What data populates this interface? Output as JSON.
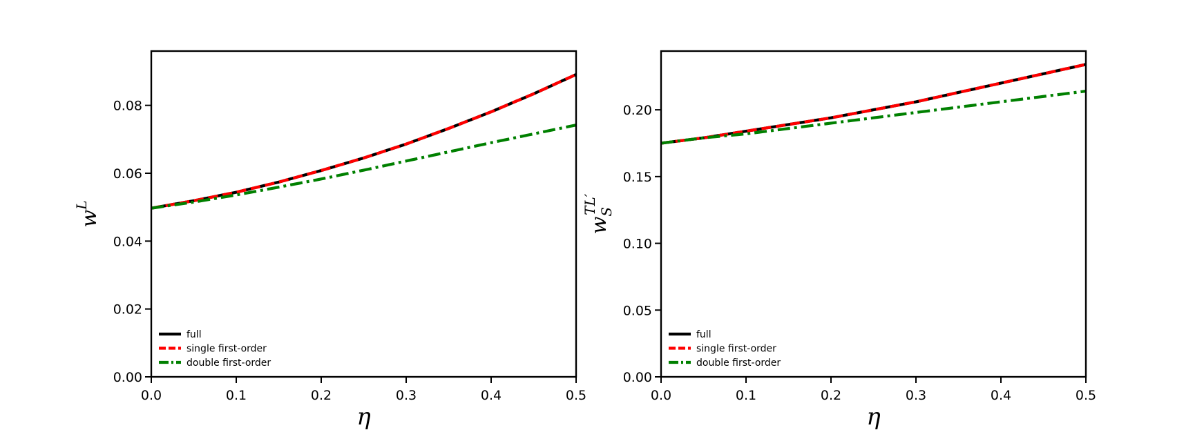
{
  "chart_data": [
    {
      "type": "line",
      "title": "",
      "xlabel": "η",
      "ylabel_base": "w",
      "ylabel_sup": "L",
      "ylabel_sub": "",
      "xlim": [
        0.0,
        0.5
      ],
      "ylim": [
        0.0,
        0.096
      ],
      "xticks": [
        "0.0",
        "0.1",
        "0.2",
        "0.3",
        "0.4",
        "0.5"
      ],
      "yticks": [
        "0.00",
        "0.02",
        "0.04",
        "0.06",
        "0.08"
      ],
      "grid": false,
      "legend_position": "lower-left",
      "x": [
        0.0,
        0.05,
        0.1,
        0.15,
        0.2,
        0.25,
        0.3,
        0.35,
        0.4,
        0.45,
        0.5
      ],
      "series": [
        {
          "name": "full",
          "color": "#000000",
          "style": "solid",
          "values": [
            0.0497,
            0.0519,
            0.0544,
            0.0574,
            0.0608,
            0.0645,
            0.0686,
            0.0732,
            0.0781,
            0.0834,
            0.0891
          ]
        },
        {
          "name": "single first-order",
          "color": "#ff0000",
          "style": "dashed",
          "values": [
            0.0497,
            0.0519,
            0.0544,
            0.0574,
            0.0608,
            0.0645,
            0.0686,
            0.0732,
            0.0781,
            0.0834,
            0.0891
          ]
        },
        {
          "name": "double first-order",
          "color": "#008000",
          "style": "dashdot",
          "values": [
            0.0497,
            0.0515,
            0.0536,
            0.0559,
            0.0583,
            0.0609,
            0.0636,
            0.0663,
            0.069,
            0.0716,
            0.0742
          ]
        }
      ]
    },
    {
      "type": "line",
      "title": "",
      "xlabel": "η",
      "ylabel_base": "w",
      "ylabel_sup": "TL′",
      "ylabel_sub": "S",
      "xlim": [
        0.0,
        0.5
      ],
      "ylim": [
        0.0,
        0.244
      ],
      "xticks": [
        "0.0",
        "0.1",
        "0.2",
        "0.3",
        "0.4",
        "0.5"
      ],
      "yticks": [
        "0.00",
        "0.05",
        "0.10",
        "0.15",
        "0.20"
      ],
      "grid": false,
      "legend_position": "lower-left",
      "x": [
        0.0,
        0.05,
        0.1,
        0.15,
        0.2,
        0.25,
        0.3,
        0.35,
        0.4,
        0.45,
        0.5
      ],
      "series": [
        {
          "name": "full",
          "color": "#000000",
          "style": "solid",
          "values": [
            0.175,
            0.179,
            0.184,
            0.189,
            0.194,
            0.2,
            0.206,
            0.213,
            0.22,
            0.227,
            0.234
          ]
        },
        {
          "name": "single first-order",
          "color": "#ff0000",
          "style": "dashed",
          "values": [
            0.175,
            0.179,
            0.184,
            0.189,
            0.194,
            0.2,
            0.206,
            0.213,
            0.22,
            0.227,
            0.234
          ]
        },
        {
          "name": "double first-order",
          "color": "#008000",
          "style": "dashdot",
          "values": [
            0.175,
            0.179,
            0.182,
            0.186,
            0.19,
            0.194,
            0.198,
            0.202,
            0.206,
            0.21,
            0.214
          ]
        }
      ]
    }
  ]
}
